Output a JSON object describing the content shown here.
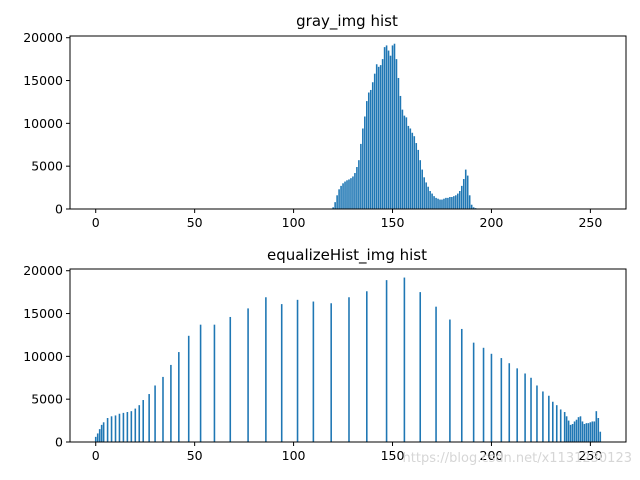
{
  "chart_data": [
    {
      "type": "bar",
      "title": "gray_img hist",
      "xlabel": "",
      "ylabel": "",
      "xlim": [
        -13,
        268
      ],
      "ylim": [
        0,
        20200
      ],
      "xticks": [
        0,
        50,
        100,
        150,
        200,
        250
      ],
      "yticks": [
        0,
        5000,
        10000,
        15000,
        20000
      ],
      "grid": false,
      "color": "#1f77b4",
      "x": [
        120,
        121,
        122,
        123,
        124,
        125,
        126,
        127,
        128,
        129,
        130,
        131,
        132,
        133,
        134,
        135,
        136,
        137,
        138,
        139,
        140,
        141,
        142,
        143,
        144,
        145,
        146,
        147,
        148,
        149,
        150,
        151,
        152,
        153,
        154,
        155,
        156,
        157,
        158,
        159,
        160,
        161,
        162,
        163,
        164,
        165,
        166,
        167,
        168,
        169,
        170,
        171,
        172,
        173,
        174,
        175,
        176,
        177,
        178,
        179,
        180,
        181,
        182,
        183,
        184,
        185,
        186,
        187,
        188,
        189,
        190,
        191,
        192,
        193,
        194,
        195,
        196,
        197,
        198,
        199,
        200
      ],
      "values": [
        200,
        800,
        1600,
        2300,
        2700,
        3000,
        3200,
        3350,
        3450,
        3600,
        3800,
        4200,
        4900,
        5700,
        7600,
        9400,
        10800,
        12600,
        13600,
        13900,
        14800,
        15800,
        16900,
        16600,
        16800,
        17500,
        18900,
        19100,
        18500,
        17900,
        19100,
        19300,
        17500,
        15300,
        13200,
        11600,
        10900,
        10700,
        9700,
        9400,
        8900,
        8500,
        7700,
        6900,
        5700,
        4600,
        3700,
        3100,
        2600,
        2100,
        1800,
        1500,
        1300,
        1200,
        1100,
        1100,
        1200,
        1300,
        1300,
        1400,
        1400,
        1500,
        1600,
        1800,
        2100,
        2700,
        3500,
        4600,
        3900,
        1600,
        500,
        200,
        100,
        50,
        30,
        20,
        10,
        5,
        5,
        0,
        0
      ]
    },
    {
      "type": "bar",
      "title": "equalizeHist_img hist",
      "xlabel": "",
      "ylabel": "",
      "xlim": [
        -13,
        268
      ],
      "ylim": [
        0,
        20200
      ],
      "xticks": [
        0,
        50,
        100,
        150,
        200,
        250
      ],
      "yticks": [
        0,
        5000,
        10000,
        15000,
        20000
      ],
      "grid": false,
      "color": "#1f77b4",
      "x": [
        0,
        1,
        2,
        3,
        4,
        6,
        8,
        10,
        12,
        14,
        16,
        18,
        20,
        22,
        24,
        27,
        30,
        34,
        38,
        42,
        47,
        53,
        60,
        68,
        77,
        86,
        94,
        102,
        110,
        119,
        128,
        137,
        147,
        156,
        164,
        172,
        179,
        185,
        191,
        196,
        200,
        205,
        209,
        213,
        217,
        220,
        223,
        226,
        229,
        231,
        233,
        235,
        237,
        238,
        239,
        240,
        241,
        242,
        243,
        244,
        245,
        246,
        247,
        248,
        249,
        250,
        251,
        252,
        253,
        254,
        255
      ],
      "values": [
        600,
        1000,
        1500,
        2000,
        2300,
        2800,
        3000,
        3100,
        3300,
        3400,
        3500,
        3600,
        3900,
        4300,
        4900,
        5600,
        6600,
        7600,
        9000,
        10500,
        12400,
        13700,
        13700,
        14600,
        15600,
        16900,
        16100,
        16600,
        16400,
        16200,
        16900,
        17600,
        18900,
        19200,
        17500,
        15800,
        14300,
        13200,
        11600,
        11000,
        10300,
        9800,
        9200,
        8600,
        8000,
        7500,
        6600,
        5900,
        5400,
        4700,
        4300,
        3800,
        3500,
        3000,
        2500,
        2000,
        2100,
        2400,
        2600,
        2900,
        3000,
        2400,
        2100,
        2200,
        2200,
        2300,
        2400,
        2400,
        3600,
        2800,
        1200
      ]
    }
  ],
  "watermark": "https://blog.csdn.net/x1131230123"
}
